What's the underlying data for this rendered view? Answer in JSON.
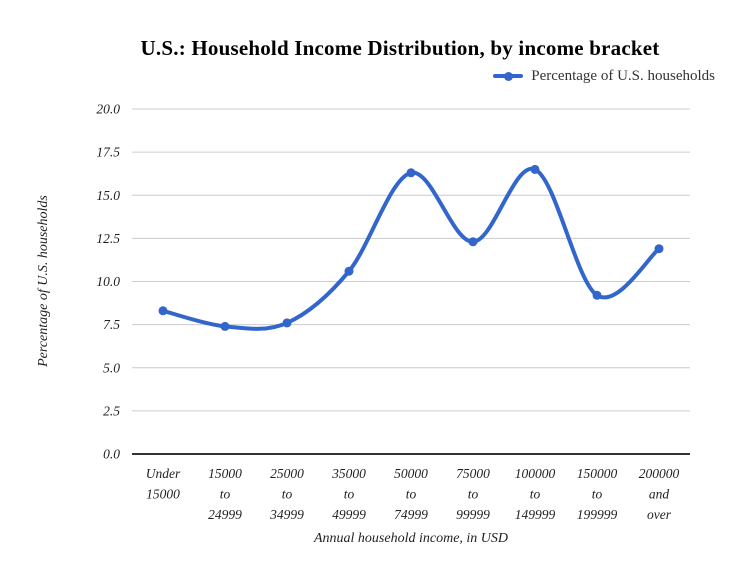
{
  "chart_data": {
    "type": "line",
    "title": "U.S.: Household Income Distribution, by income bracket",
    "xlabel": "Annual household income, in USD",
    "ylabel": "Percentage of U.S. households",
    "categories": [
      "Under 15000",
      "15000 to 24999",
      "25000 to 34999",
      "35000 to 49999",
      "50000 to 74999",
      "75000 to 99999",
      "100000 to 149999",
      "150000 to 199999",
      "200000 and over"
    ],
    "categories_wrapped": [
      [
        "Under",
        "15000"
      ],
      [
        "15000",
        "to",
        "24999"
      ],
      [
        "25000",
        "to",
        "34999"
      ],
      [
        "35000",
        "to",
        "49999"
      ],
      [
        "50000",
        "to",
        "74999"
      ],
      [
        "75000",
        "to",
        "99999"
      ],
      [
        "100000",
        "to",
        "149999"
      ],
      [
        "150000",
        "to",
        "199999"
      ],
      [
        "200000",
        "and",
        "over"
      ]
    ],
    "series": [
      {
        "name": "Percentage of U.S. households",
        "values": [
          8.3,
          7.4,
          7.6,
          10.6,
          16.3,
          12.3,
          16.5,
          9.2,
          11.9
        ]
      }
    ],
    "ylim": [
      0,
      20
    ],
    "ytick_step": 2.5,
    "ytick_labels": [
      "0.0",
      "2.5",
      "5.0",
      "7.5",
      "10.0",
      "12.5",
      "15.0",
      "17.5",
      "20.0"
    ],
    "grid": true,
    "legend_position": "top-right",
    "line_color": "#3366CC",
    "marker_color": "#3366CC",
    "grid_color": "#CCCCCC",
    "axis_color": "#333333",
    "text_color": "#1f1f1f"
  }
}
